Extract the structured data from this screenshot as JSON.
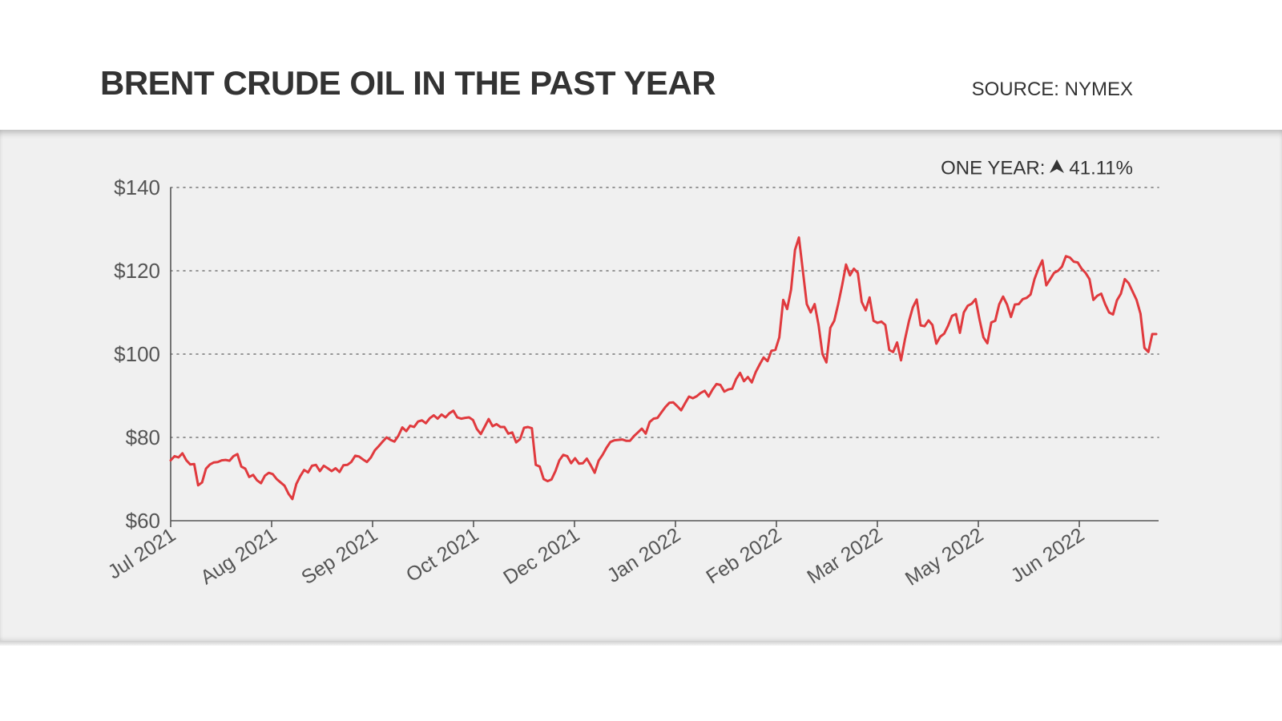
{
  "header": {
    "title": "BRENT CRUDE OIL IN THE PAST YEAR",
    "source": "SOURCE: NYMEX"
  },
  "summary": {
    "label": "ONE YEAR:",
    "direction": "up",
    "arrow_icon": "up-arrow-icon",
    "value": "41.11%"
  },
  "colors": {
    "line": "#e03a3e",
    "panel_background": "#f0f0f0",
    "grid": "#777777",
    "axis": "#555555"
  },
  "chart_data": {
    "type": "line",
    "title": "BRENT CRUDE OIL IN THE PAST YEAR",
    "xlabel": "",
    "ylabel": "",
    "ylim": [
      60,
      140
    ],
    "y_ticks": [
      60,
      80,
      100,
      120,
      140
    ],
    "y_tick_labels": [
      "$60",
      "$80",
      "$100",
      "$120",
      "$140"
    ],
    "x_tick_labels": [
      "Jul 2021",
      "Aug 2021",
      "Sep 2021",
      "Oct 2021",
      "Dec 2021",
      "Jan 2022",
      "Feb 2022",
      "Mar 2022",
      "May 2022",
      "Jun 2022"
    ],
    "grid": "horizontal dotted",
    "series": [
      {
        "values": [
          74.5,
          75.5,
          75.2,
          76.2,
          74.5,
          73.5,
          73.6,
          68.5,
          69.2,
          72.5,
          73.5,
          74,
          74.1,
          74.5,
          74.6,
          74.4,
          75.5,
          76,
          73,
          72.5,
          70.5,
          71,
          69.7,
          69,
          70.8,
          71.5,
          71.2,
          70,
          69.2,
          68.4,
          66.5,
          65.2,
          68.8,
          70.7,
          72.2,
          71.6,
          73.2,
          73.4,
          71.9,
          73.2,
          72.6,
          71.9,
          72.6,
          71.7,
          73.3,
          73.4,
          74.1,
          75.6,
          75.4,
          74.7,
          74.1,
          75.2,
          76.9,
          77.9,
          79,
          80,
          79.4,
          79,
          80.4,
          82.4,
          81.5,
          82.8,
          82.5,
          83.8,
          84.1,
          83.4,
          84.6,
          85.3,
          84.5,
          85.5,
          84.8,
          85.8,
          86.4,
          84.8,
          84.5,
          84.7,
          84.8,
          84.2,
          82,
          80.8,
          82.6,
          84.4,
          82.7,
          83.2,
          82.5,
          82.5,
          80.9,
          81.2,
          78.8,
          79.6,
          82.3,
          82.5,
          82.2,
          73.4,
          73,
          70,
          69.5,
          69.9,
          71.9,
          74.5,
          75.8,
          75.5,
          73.8,
          75,
          73.7,
          73.8,
          74.9,
          73.3,
          71.5,
          74.4,
          75.8,
          77.5,
          78.9,
          79.3,
          79.4,
          79.5,
          79.2,
          79.2,
          80.3,
          81.2,
          82.1,
          80.9,
          83.7,
          84.5,
          84.7,
          86,
          87.3,
          88.3,
          88.4,
          87.5,
          86.5,
          88.2,
          89.8,
          89.4,
          89.9,
          90.7,
          91.2,
          89.8,
          91.5,
          92.8,
          92.6,
          91,
          91.5,
          91.7,
          94,
          95.5,
          93.5,
          94.5,
          93.2,
          95.7,
          97.5,
          99.2,
          98.3,
          100.8,
          101,
          104,
          113,
          110.8,
          115.5,
          125,
          128,
          120,
          112,
          110,
          112,
          107,
          100,
          98,
          106.3,
          108,
          112,
          116.5,
          121.5,
          118.9,
          120.5,
          119.5,
          112.5,
          110.5,
          113.6,
          108,
          107.5,
          107.8,
          107,
          101,
          100.5,
          102.8,
          98.5,
          103.5,
          107.8,
          111.2,
          113.1,
          106.9,
          106.7,
          108.1,
          107,
          102.5,
          104.2,
          104.9,
          106.8,
          109.2,
          109.6,
          105.1,
          110,
          111.6,
          112.1,
          113.2,
          108.3,
          104,
          102.6,
          107.6,
          108,
          111.9,
          113.8,
          111.9,
          108.9,
          111.9,
          112,
          113.2,
          113.5,
          114.3,
          118,
          120.5,
          122.5,
          116.5,
          118,
          119.5,
          120,
          121,
          123.5,
          123.2,
          122.2,
          122,
          120.5,
          119.5,
          118,
          113,
          114,
          114.5,
          112,
          110,
          109.5,
          112.9,
          114.5,
          118,
          117,
          115,
          113,
          109.7,
          101.5,
          100.5,
          104.8,
          104.8
        ]
      }
    ]
  }
}
